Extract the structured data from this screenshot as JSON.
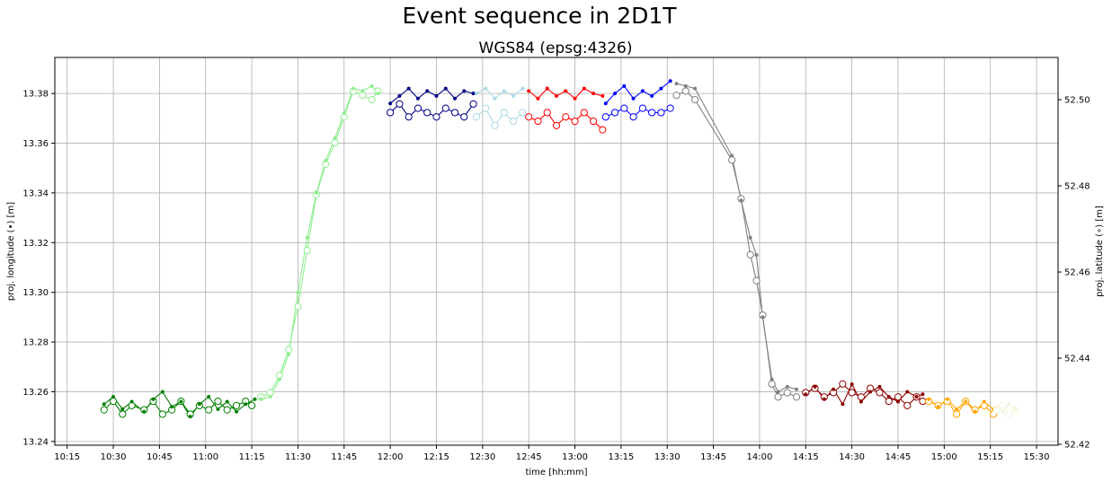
{
  "chart_data": {
    "type": "line",
    "title": "Event sequence in 2D1T",
    "subtitle": "WGS84 (epsg:4326)",
    "xlabel": "time [hh:mm]",
    "ylabel_left": "proj. longitude (•) [m]",
    "ylabel_right": "proj. latitude (∘) [m]",
    "grid": true,
    "xlim": [
      "10:11",
      "15:37"
    ],
    "ylim_left": [
      13.2385,
      13.3945
    ],
    "ylim_right": [
      52.4198,
      52.5098
    ],
    "x_ticks": [
      "10:15",
      "10:30",
      "10:45",
      "11:00",
      "11:15",
      "11:30",
      "11:45",
      "12:00",
      "12:15",
      "12:30",
      "12:45",
      "13:00",
      "13:15",
      "13:30",
      "13:45",
      "14:00",
      "14:15",
      "14:30",
      "14:45",
      "15:00",
      "15:15",
      "15:30"
    ],
    "y_ticks_left": [
      "13.24",
      "13.26",
      "13.28",
      "13.30",
      "13.32",
      "13.34",
      "13.36",
      "13.38"
    ],
    "y_ticks_right": [
      "52.42",
      "52.44",
      "52.46",
      "52.48",
      "52.50"
    ],
    "series": [
      {
        "color": "#008000",
        "longitude": [
          [
            "10:27",
            13.255
          ],
          [
            "10:30",
            13.258
          ],
          [
            "10:33",
            13.253
          ],
          [
            "10:36",
            13.256
          ],
          [
            "10:40",
            13.252
          ],
          [
            "10:43",
            13.257
          ],
          [
            "10:46",
            13.26
          ],
          [
            "10:49",
            13.254
          ],
          [
            "10:52",
            13.256
          ],
          [
            "10:55",
            13.25
          ],
          [
            "10:58",
            13.255
          ],
          [
            "11:01",
            13.258
          ],
          [
            "11:04",
            13.253
          ],
          [
            "11:07",
            13.256
          ],
          [
            "11:10",
            13.252
          ],
          [
            "11:13",
            13.255
          ],
          [
            "11:16",
            13.257
          ]
        ],
        "latitude": [
          [
            "10:27",
            52.428
          ],
          [
            "10:30",
            52.43
          ],
          [
            "10:33",
            52.427
          ],
          [
            "10:36",
            52.429
          ],
          [
            "10:40",
            52.428
          ],
          [
            "10:43",
            52.43
          ],
          [
            "10:46",
            52.427
          ],
          [
            "10:49",
            52.428
          ],
          [
            "10:52",
            52.43
          ],
          [
            "10:55",
            52.427
          ],
          [
            "10:58",
            52.429
          ],
          [
            "11:01",
            52.428
          ],
          [
            "11:04",
            52.43
          ],
          [
            "11:07",
            52.428
          ],
          [
            "11:10",
            52.429
          ],
          [
            "11:13",
            52.43
          ],
          [
            "11:15",
            52.429
          ]
        ]
      },
      {
        "color": "#90ee90",
        "longitude": [
          [
            "11:18",
            13.257
          ],
          [
            "11:21",
            13.258
          ],
          [
            "11:24",
            13.265
          ],
          [
            "11:27",
            13.275
          ],
          [
            "11:30",
            13.3
          ],
          [
            "11:33",
            13.322
          ],
          [
            "11:36",
            13.34
          ],
          [
            "11:39",
            13.353
          ],
          [
            "11:42",
            13.362
          ],
          [
            "11:45",
            13.372
          ],
          [
            "11:48",
            13.382
          ],
          [
            "11:51",
            13.381
          ],
          [
            "11:54",
            13.383
          ],
          [
            "11:56",
            13.38
          ]
        ],
        "latitude": [
          [
            "11:18",
            52.431
          ],
          [
            "11:21",
            52.432
          ],
          [
            "11:24",
            52.436
          ],
          [
            "11:27",
            52.442
          ],
          [
            "11:30",
            52.452
          ],
          [
            "11:33",
            52.465
          ],
          [
            "11:36",
            52.478
          ],
          [
            "11:39",
            52.485
          ],
          [
            "11:42",
            52.49
          ],
          [
            "11:45",
            52.496
          ],
          [
            "11:48",
            52.502
          ],
          [
            "11:51",
            52.501
          ],
          [
            "11:54",
            52.5
          ],
          [
            "11:56",
            52.502
          ]
        ]
      },
      {
        "color": "#000080",
        "longitude": [
          [
            "12:00",
            13.376
          ],
          [
            "12:03",
            13.379
          ],
          [
            "12:06",
            13.382
          ],
          [
            "12:09",
            13.378
          ],
          [
            "12:12",
            13.381
          ],
          [
            "12:15",
            13.379
          ],
          [
            "12:18",
            13.382
          ],
          [
            "12:21",
            13.378
          ],
          [
            "12:24",
            13.381
          ],
          [
            "12:27",
            13.38
          ]
        ],
        "latitude": [
          [
            "12:00",
            52.497
          ],
          [
            "12:03",
            52.499
          ],
          [
            "12:06",
            52.496
          ],
          [
            "12:09",
            52.498
          ],
          [
            "12:12",
            52.497
          ],
          [
            "12:15",
            52.496
          ],
          [
            "12:18",
            52.498
          ],
          [
            "12:21",
            52.497
          ],
          [
            "12:24",
            52.496
          ],
          [
            "12:27",
            52.499
          ]
        ]
      },
      {
        "color": "#add8e6",
        "longitude": [
          [
            "12:28",
            13.38
          ],
          [
            "12:31",
            13.382
          ],
          [
            "12:34",
            13.378
          ],
          [
            "12:37",
            13.381
          ],
          [
            "12:40",
            13.379
          ],
          [
            "12:43",
            13.382
          ]
        ],
        "latitude": [
          [
            "12:28",
            52.496
          ],
          [
            "12:31",
            52.498
          ],
          [
            "12:34",
            52.494
          ],
          [
            "12:37",
            52.497
          ],
          [
            "12:40",
            52.495
          ],
          [
            "12:43",
            52.497
          ]
        ]
      },
      {
        "color": "#ff0000",
        "longitude": [
          [
            "12:45",
            13.381
          ],
          [
            "12:48",
            13.378
          ],
          [
            "12:51",
            13.382
          ],
          [
            "12:54",
            13.379
          ],
          [
            "12:57",
            13.381
          ],
          [
            "13:00",
            13.378
          ],
          [
            "13:03",
            13.382
          ],
          [
            "13:06",
            13.38
          ],
          [
            "13:09",
            13.379
          ]
        ],
        "latitude": [
          [
            "12:45",
            52.496
          ],
          [
            "12:48",
            52.495
          ],
          [
            "12:51",
            52.497
          ],
          [
            "12:54",
            52.494
          ],
          [
            "12:57",
            52.496
          ],
          [
            "13:00",
            52.495
          ],
          [
            "13:03",
            52.497
          ],
          [
            "13:06",
            52.495
          ],
          [
            "13:09",
            52.493
          ]
        ]
      },
      {
        "color": "#0000ff",
        "longitude": [
          [
            "13:10",
            13.376
          ],
          [
            "13:13",
            13.38
          ],
          [
            "13:16",
            13.383
          ],
          [
            "13:19",
            13.378
          ],
          [
            "13:22",
            13.381
          ],
          [
            "13:25",
            13.379
          ],
          [
            "13:28",
            13.382
          ],
          [
            "13:31",
            13.385
          ]
        ],
        "latitude": [
          [
            "13:10",
            52.496
          ],
          [
            "13:13",
            52.497
          ],
          [
            "13:16",
            52.498
          ],
          [
            "13:19",
            52.496
          ],
          [
            "13:22",
            52.498
          ],
          [
            "13:25",
            52.497
          ],
          [
            "13:28",
            52.497
          ],
          [
            "13:31",
            52.498
          ]
        ]
      },
      {
        "color": "#808080",
        "longitude": [
          [
            "13:33",
            13.384
          ],
          [
            "13:36",
            13.383
          ],
          [
            "13:39",
            13.382
          ],
          [
            "13:51",
            13.355
          ],
          [
            "13:54",
            13.337
          ],
          [
            "13:57",
            13.322
          ],
          [
            "13:59",
            13.315
          ],
          [
            "14:01",
            13.29
          ],
          [
            "14:04",
            13.265
          ],
          [
            "14:06",
            13.26
          ],
          [
            "14:09",
            13.262
          ],
          [
            "14:12",
            13.261
          ]
        ],
        "latitude": [
          [
            "13:33",
            52.501
          ],
          [
            "13:36",
            52.502
          ],
          [
            "13:39",
            52.5
          ],
          [
            "13:51",
            52.486
          ],
          [
            "13:54",
            52.477
          ],
          [
            "13:57",
            52.464
          ],
          [
            "13:59",
            52.458
          ],
          [
            "14:01",
            52.45
          ],
          [
            "14:04",
            52.434
          ],
          [
            "14:06",
            52.431
          ],
          [
            "14:09",
            52.432
          ],
          [
            "14:12",
            52.431
          ]
        ]
      },
      {
        "color": "#8b0000",
        "longitude": [
          [
            "14:15",
            13.259
          ],
          [
            "14:18",
            13.262
          ],
          [
            "14:21",
            13.257
          ],
          [
            "14:24",
            13.261
          ],
          [
            "14:27",
            13.255
          ],
          [
            "14:30",
            13.263
          ],
          [
            "14:33",
            13.256
          ],
          [
            "14:36",
            13.26
          ],
          [
            "14:39",
            13.262
          ],
          [
            "14:42",
            13.258
          ],
          [
            "14:45",
            13.256
          ],
          [
            "14:48",
            13.26
          ],
          [
            "14:51",
            13.258
          ],
          [
            "14:53",
            13.259
          ]
        ],
        "latitude": [
          [
            "14:15",
            52.432
          ],
          [
            "14:18",
            52.433
          ],
          [
            "14:21",
            52.431
          ],
          [
            "14:24",
            52.432
          ],
          [
            "14:27",
            52.434
          ],
          [
            "14:30",
            52.432
          ],
          [
            "14:33",
            52.431
          ],
          [
            "14:36",
            52.433
          ],
          [
            "14:39",
            52.432
          ],
          [
            "14:42",
            52.43
          ],
          [
            "14:45",
            52.431
          ],
          [
            "14:48",
            52.429
          ],
          [
            "14:51",
            52.431
          ],
          [
            "14:53",
            52.43
          ]
        ]
      },
      {
        "color": "#ffa500",
        "longitude": [
          [
            "14:55",
            13.257
          ],
          [
            "14:58",
            13.254
          ],
          [
            "15:01",
            13.257
          ],
          [
            "15:04",
            13.253
          ],
          [
            "15:07",
            13.256
          ],
          [
            "15:10",
            13.252
          ],
          [
            "15:13",
            13.256
          ],
          [
            "15:16",
            13.253
          ]
        ],
        "latitude": [
          [
            "14:55",
            52.43
          ],
          [
            "14:58",
            52.429
          ],
          [
            "15:01",
            52.43
          ],
          [
            "15:04",
            52.427
          ],
          [
            "15:07",
            52.43
          ],
          [
            "15:10",
            52.428
          ],
          [
            "15:13",
            52.429
          ],
          [
            "15:16",
            52.427
          ]
        ]
      },
      {
        "color": "#f5f5dc",
        "longitude": [
          [
            "15:17",
            13.254
          ],
          [
            "15:19",
            13.252
          ],
          [
            "15:21",
            13.255
          ],
          [
            "15:23",
            13.253
          ]
        ],
        "latitude": [
          [
            "15:17",
            52.428
          ],
          [
            "15:19",
            52.429
          ],
          [
            "15:21",
            52.427
          ],
          [
            "15:23",
            52.428
          ]
        ]
      }
    ]
  }
}
